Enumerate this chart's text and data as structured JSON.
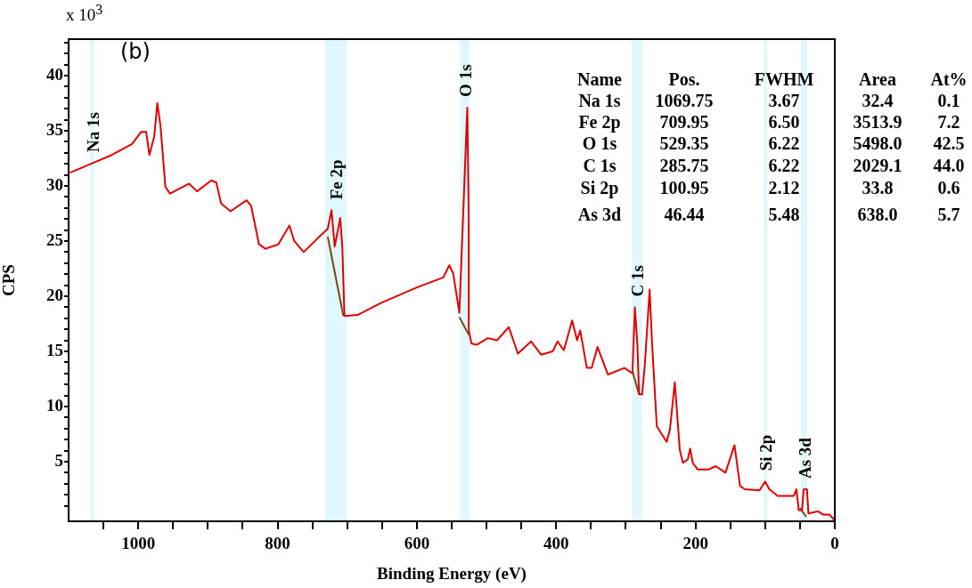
{
  "chart_data": {
    "type": "line",
    "xlabel": "Binding Energy (eV)",
    "ylabel": "CPS",
    "annotations": [
      "x 10$^{3}$",
      "(b)",
      "Name",
      "Pos.",
      "FWHM",
      "Area",
      "At%",
      "Na 1s",
      "1069.75",
      "3.67",
      "32.4",
      "0.1",
      "Fe 2p",
      "709.95",
      "6.50",
      "3513.9",
      "7.2",
      "O 1s",
      "529.35",
      "6.22",
      "5498.0",
      "42.5",
      "C 1s",
      "285.75",
      "6.22",
      "2029.1",
      "44.0",
      "Si 2p",
      "100.95",
      "2.12",
      "33.8",
      "0.6",
      "As 3d",
      "46.44",
      "5.48",
      "638.0",
      "5.7"
    ],
    "xlim": [
      1100,
      0
    ],
    "xticks": [
      {
        "value": 1050,
        "label": null
      },
      1000,
      {
        "value": 950,
        "label": null
      },
      {
        "value": 900,
        "label": null
      },
      {
        "value": 850,
        "label": null
      },
      800,
      {
        "value": 750,
        "label": null
      },
      {
        "value": 700,
        "label": null
      },
      {
        "value": 650,
        "label": null
      },
      600,
      {
        "value": 550,
        "label": null
      },
      {
        "value": 500,
        "label": null
      },
      {
        "value": 450,
        "label": null
      },
      400,
      {
        "value": 350,
        "label": null
      },
      {
        "value": 300,
        "label": null
      },
      {
        "value": 250,
        "label": null
      },
      200,
      {
        "value": 150,
        "label": null
      },
      {
        "value": 100,
        "label": null
      },
      {
        "value": 50,
        "label": null
      },
      0
    ],
    "ylim": [
      -0.4,
      43.3
    ],
    "yticks": [
      {
        "value": 1,
        "label": null
      },
      {
        "value": 2,
        "label": null
      },
      {
        "value": 3,
        "label": null
      },
      {
        "value": 4,
        "label": null
      },
      5,
      {
        "value": 6,
        "label": null
      },
      {
        "value": 7,
        "label": null
      },
      {
        "value": 8,
        "label": null
      },
      {
        "value": 9,
        "label": null
      },
      10,
      {
        "value": 11,
        "label": null
      },
      {
        "value": 12,
        "label": null
      },
      {
        "value": 13,
        "label": null
      },
      {
        "value": 14,
        "label": null
      },
      15,
      {
        "value": 16,
        "label": null
      },
      {
        "value": 17,
        "label": null
      },
      {
        "value": 18,
        "label": null
      },
      {
        "value": 19,
        "label": null
      },
      20,
      {
        "value": 21,
        "label": null
      },
      {
        "value": 22,
        "label": null
      },
      {
        "value": 23,
        "label": null
      },
      {
        "value": 24,
        "label": null
      },
      25,
      {
        "value": 26,
        "label": null
      },
      {
        "value": 27,
        "label": null
      },
      {
        "value": 28,
        "label": null
      },
      {
        "value": 29,
        "label": null
      },
      30,
      {
        "value": 31,
        "label": null
      },
      {
        "value": 32,
        "label": null
      },
      {
        "value": 33,
        "label": null
      },
      {
        "value": 34,
        "label": null
      },
      35,
      {
        "value": 36,
        "label": null
      },
      {
        "value": 37,
        "label": null
      },
      {
        "value": 38,
        "label": null
      },
      {
        "value": 39,
        "label": null
      },
      40,
      {
        "value": 41,
        "label": null
      },
      {
        "value": 42,
        "label": null
      },
      {
        "value": 43,
        "label": null
      }
    ],
    "grid": false,
    "legend": false,
    "marker": "none",
    "line_style": "solid",
    "bands": [
      {
        "axis": "x",
        "from": 1069,
        "to": 1063,
        "label": "Na 1s",
        "color": "#e0f8fb"
      },
      {
        "axis": "x",
        "from": 731.6,
        "to": 701,
        "label": "Fe 2p",
        "color": "#e0f8fb"
      },
      {
        "axis": "x",
        "from": 538,
        "to": 524.4,
        "label": "O 1s",
        "color": "#e0f8fb"
      },
      {
        "axis": "x",
        "from": 291.4,
        "to": 276.6,
        "label": "C 1s",
        "color": "#e0f8fb"
      },
      {
        "axis": "x",
        "from": 102,
        "to": 97,
        "label": "Si 2p",
        "color": "#e0f8fb"
      },
      {
        "axis": "x",
        "from": 48.6,
        "to": 39.6,
        "label": "As 3d",
        "color": "#e0f8fb"
      }
    ],
    "series": [
      {
        "color": "#e00000",
        "x": [
          1098,
          1064,
          1038,
          1009,
          995.6,
          988.6,
          984,
          977,
          972.6,
          968,
          961,
          954.4,
          927,
          915.6,
          895,
          888,
          881,
          867.5,
          844.5,
          838,
          826.6,
          817.5,
          799,
          783,
          776,
          762.5,
          740,
          728,
          722.5,
          718,
          710,
          707,
          704,
          685,
          651,
          600,
          562,
          553.5,
          548,
          539,
          527.6,
          525.5,
          525.5,
          521.5,
          514,
          498,
          485,
          468,
          455,
          436,
          421.6,
          405,
          398,
          389,
          377,
          370,
          365.5,
          356,
          349,
          340.6,
          325.7,
          302,
          290.6,
          287,
          283.4,
          281,
          276.6,
          272.7,
          265.8,
          262.5,
          255.5,
          241.4,
          236.7,
          229.7,
          222.6,
          218,
          211,
          207.7,
          204,
          197,
          180.6,
          171,
          157,
          144,
          136,
          129,
          108,
          100,
          94,
          82,
          59,
          55,
          51.8,
          47,
          44.7,
          40,
          37.8,
          23.8,
          16.6,
          7.7,
          0.2
        ],
        "values": [
          31.2,
          32.1,
          32.8,
          33.8,
          34.9,
          34.9,
          32.8,
          34.5,
          37.5,
          35.4,
          29.9,
          29.3,
          30.2,
          29.5,
          30.5,
          30.3,
          28.4,
          27.7,
          28.7,
          28.2,
          24.7,
          24.3,
          24.7,
          26.4,
          25.0,
          24.0,
          25.4,
          26.1,
          27.8,
          24.5,
          27.1,
          24.4,
          18.2,
          18.3,
          19.4,
          20.8,
          21.7,
          22.8,
          22.1,
          18.5,
          37.1,
          27.3,
          16.9,
          15.7,
          15.6,
          16.2,
          16.0,
          17.2,
          14.8,
          15.9,
          14.7,
          15.0,
          15.9,
          15.1,
          17.8,
          16.0,
          16.9,
          13.5,
          13.5,
          15.4,
          12.9,
          13.5,
          13.0,
          19.0,
          15.6,
          11.1,
          11.1,
          13.8,
          20.6,
          15.9,
          8.2,
          6.8,
          7.9,
          12.2,
          6.1,
          4.9,
          5.2,
          6.2,
          4.9,
          4.3,
          4.3,
          4.6,
          4.0,
          6.5,
          2.8,
          2.5,
          2.4,
          3.2,
          2.5,
          1.9,
          1.9,
          2.5,
          0.6,
          0.6,
          2.5,
          2.5,
          0.3,
          0.5,
          0.2,
          0.2,
          -0.3
        ]
      },
      {
        "color": "#7a4a10",
        "x": [
          728,
          705.5
        ],
        "values": [
          25.4,
          18.2
        ]
      },
      {
        "color": "#7a4a10",
        "x": [
          539,
          525.5
        ],
        "values": [
          18.1,
          16.5
        ]
      },
      {
        "color": "#7a4a10",
        "x": [
          290.6,
          281
        ],
        "values": [
          13.2,
          11.1
        ]
      },
      {
        "color": "#7a4a10",
        "x": [
          50,
          41
        ],
        "values": [
          0.8,
          0.0
        ]
      }
    ]
  }
}
